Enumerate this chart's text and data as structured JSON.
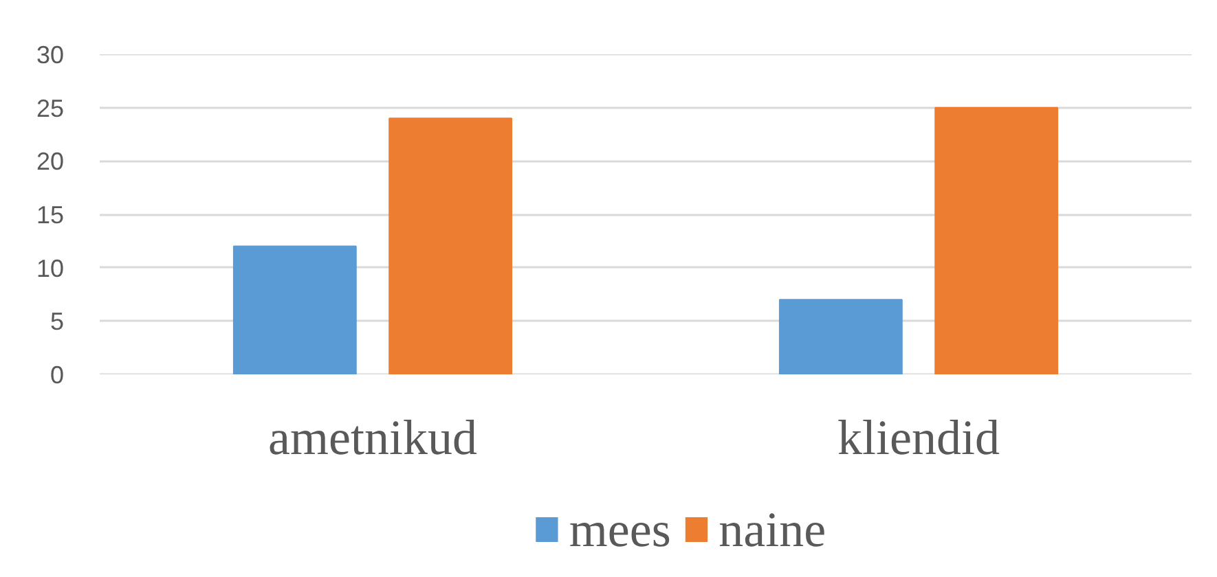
{
  "chart_data": {
    "type": "bar",
    "categories": [
      "ametnikud",
      "kliendid"
    ],
    "series": [
      {
        "name": "mees",
        "color": "#5b9bd5",
        "values": [
          12,
          7
        ]
      },
      {
        "name": "naine",
        "color": "#ed7d31",
        "values": [
          24,
          25
        ]
      }
    ],
    "ylim": [
      0,
      30
    ],
    "yticks": [
      0,
      5,
      10,
      15,
      20,
      25,
      30
    ],
    "grid": "y",
    "legend": "bottom"
  }
}
